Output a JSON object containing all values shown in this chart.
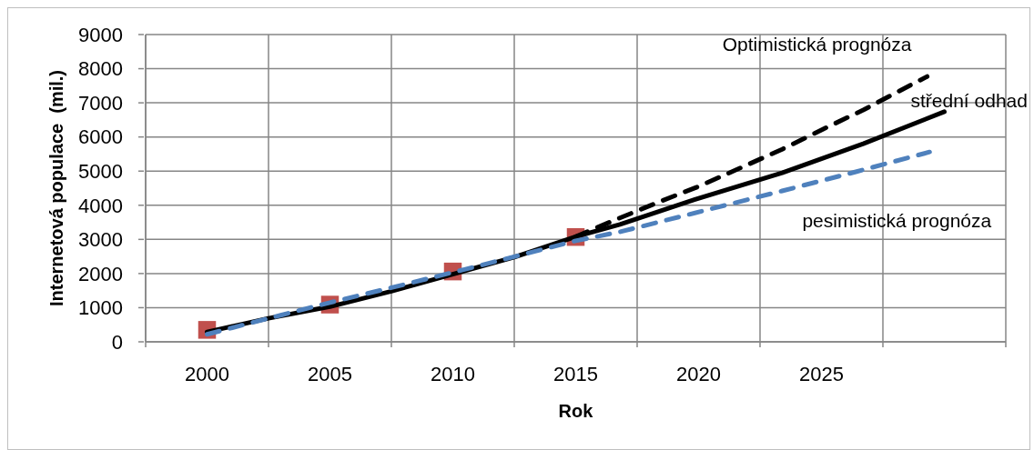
{
  "chart_data": {
    "type": "line",
    "xlabel": "Rok",
    "ylabel": "Internetová populace  (mil.)",
    "xlim": [
      1997.5,
      2032.5
    ],
    "xticks": [
      {
        "value": 1997.5,
        "label": null
      },
      2000,
      {
        "value": 2002.5,
        "label": null
      },
      2005,
      {
        "value": 2007.5,
        "label": null
      },
      2010,
      {
        "value": 2012.5,
        "label": null
      },
      2015,
      {
        "value": 2017.5,
        "label": null
      },
      2020,
      {
        "value": 2022.5,
        "label": null
      },
      2025,
      {
        "value": 2027.5,
        "label": null
      },
      {
        "value": 2032.5,
        "label": null
      }
    ],
    "ylim": [
      0,
      9000
    ],
    "yticks": [
      0,
      1000,
      2000,
      3000,
      4000,
      5000,
      6000,
      7000,
      8000,
      9000
    ],
    "grid": true,
    "series": [
      {
        "type": "scatter",
        "color": "#c0504d",
        "marker": "square",
        "x": [
          2000,
          2005,
          2010,
          2015
        ],
        "values": [
          350,
          1090,
          2060,
          3070
        ]
      },
      {
        "name": "střední odhad",
        "color": "#000000",
        "line_style": "solid",
        "x": [
          2000,
          2002.5,
          2005,
          2007.5,
          2010,
          2012.5,
          2015,
          2016.8,
          2019.8,
          2023.4,
          2026.7,
          2030
        ],
        "values": [
          290,
          690,
          1030,
          1480,
          1980,
          2480,
          3080,
          3440,
          4160,
          4950,
          5800,
          6740
        ]
      },
      {
        "name": "Optimistická prognóza",
        "color": "#000000",
        "line_style": "dashed",
        "x": [
          2015,
          2016.6,
          2018.4,
          2020,
          2022,
          2023.4,
          2025.3,
          2026.7,
          2028.6,
          2029.3
        ],
        "values": [
          3080,
          3570,
          4100,
          4550,
          5190,
          5640,
          6310,
          6790,
          7510,
          7770
        ]
      },
      {
        "name": "pesimistická prognóza",
        "color": "#4f81bd",
        "line_style": "dashed",
        "x": [
          2000,
          2003,
          2005,
          2007.7,
          2010.7,
          2015,
          2016.8,
          2023.4,
          2026.4,
          2029.4
        ],
        "values": [
          220,
          780,
          1150,
          1620,
          2160,
          2960,
          3220,
          4420,
          4980,
          5560
        ]
      }
    ]
  }
}
